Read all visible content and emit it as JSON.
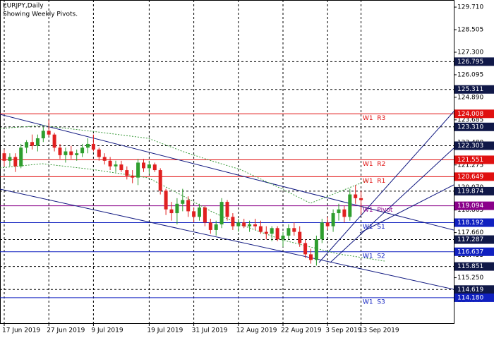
{
  "chart_data": {
    "type": "candlestick",
    "title": "EURJPY,Daily",
    "subtitle": "Showing Weekly Pivots.",
    "categories": [
      "17 Jun 2019",
      null,
      null,
      null,
      null,
      null,
      null,
      null,
      "27 Jun 2019",
      null,
      null,
      null,
      null,
      null,
      null,
      null,
      "9 Jul 2019",
      null,
      null,
      null,
      null,
      null,
      null,
      null,
      null,
      null,
      "19 Jul 2019",
      null,
      null,
      null,
      null,
      null,
      null,
      null,
      "31 Jul 2019",
      null,
      null,
      null,
      null,
      null,
      null,
      null,
      "12 Aug 2019",
      null,
      null,
      null,
      null,
      null,
      null,
      null,
      "22 Aug 2019",
      null,
      null,
      null,
      null,
      null,
      null,
      null,
      "3 Sep 2019",
      null,
      null,
      null,
      null,
      null,
      "13 Sep 2019"
    ],
    "open": [
      121.9,
      121.5,
      121.7,
      121.2,
      122.2,
      122.5,
      122.3,
      122.7,
      123.1,
      122.9,
      122.2,
      121.8,
      122.0,
      121.8,
      121.9,
      122.2,
      122.4,
      122.1,
      121.7,
      121.5,
      121.2,
      121.3,
      121.0,
      120.7,
      120.6,
      121.4,
      121.1,
      121.3,
      121.0,
      119.9,
      118.9,
      118.7,
      119.2,
      119.4,
      118.8,
      118.5,
      119.0,
      118.2,
      117.8,
      118.1,
      119.3,
      118.5,
      118.0,
      118.2,
      118.0,
      118.1,
      118.0,
      117.7,
      117.6,
      117.9,
      117.3,
      117.5,
      117.9,
      117.7,
      117.1,
      116.5,
      116.2,
      117.3,
      118.2,
      118.0,
      118.7,
      118.9,
      118.5,
      119.7,
      119.5
    ],
    "high": [
      122.1,
      121.9,
      121.9,
      122.4,
      122.6,
      122.9,
      122.9,
      123.3,
      123.7,
      123.0,
      122.4,
      122.2,
      122.3,
      122.1,
      122.4,
      122.7,
      122.9,
      122.2,
      121.9,
      121.7,
      121.5,
      121.5,
      121.2,
      121.0,
      121.6,
      121.6,
      121.5,
      121.4,
      121.1,
      120.0,
      119.3,
      119.5,
      120.0,
      119.6,
      119.0,
      119.2,
      119.1,
      118.4,
      118.3,
      119.5,
      119.4,
      118.7,
      118.4,
      118.4,
      118.3,
      118.4,
      118.3,
      118.0,
      118.0,
      118.0,
      117.7,
      118.1,
      118.2,
      118.0,
      117.3,
      116.8,
      117.5,
      118.4,
      118.5,
      118.9,
      119.2,
      119.1,
      120.0,
      120.2,
      119.9
    ],
    "low": [
      121.2,
      121.2,
      120.9,
      121.1,
      121.9,
      122.1,
      122.0,
      122.5,
      122.8,
      122.0,
      121.6,
      121.4,
      121.6,
      121.5,
      121.7,
      121.9,
      122.0,
      121.5,
      121.3,
      121.0,
      120.9,
      120.9,
      120.5,
      120.3,
      120.2,
      120.9,
      120.8,
      120.9,
      119.7,
      118.6,
      118.3,
      118.1,
      118.8,
      118.5,
      118.2,
      118.3,
      118.0,
      117.6,
      117.5,
      117.9,
      118.3,
      117.8,
      117.7,
      117.9,
      117.7,
      117.8,
      117.6,
      117.3,
      117.2,
      117.2,
      116.9,
      117.3,
      117.5,
      116.9,
      116.3,
      116.0,
      115.9,
      117.1,
      117.8,
      117.7,
      118.3,
      118.2,
      118.3,
      119.2,
      118.6
    ],
    "close": [
      121.5,
      121.7,
      121.2,
      122.2,
      122.5,
      122.3,
      122.7,
      123.1,
      122.9,
      122.2,
      121.8,
      122.0,
      121.8,
      121.9,
      122.2,
      122.4,
      122.1,
      121.7,
      121.5,
      121.2,
      121.3,
      121.0,
      120.7,
      120.6,
      121.4,
      121.1,
      121.3,
      121.0,
      119.9,
      118.9,
      118.7,
      119.2,
      119.4,
      118.8,
      118.5,
      119.0,
      118.2,
      117.8,
      118.1,
      119.3,
      118.5,
      118.0,
      118.2,
      118.0,
      118.1,
      118.0,
      117.7,
      117.6,
      117.9,
      117.3,
      117.5,
      117.9,
      117.7,
      117.1,
      116.5,
      116.2,
      117.3,
      118.2,
      118.0,
      118.7,
      118.9,
      118.5,
      119.7,
      119.5,
      119.4
    ],
    "up_color": "#2e9e2e",
    "down_color": "#e02020",
    "ylim": [
      112.82,
      130.09
    ],
    "yticks": [
      {
        "value": 129.71,
        "label": "129.710"
      },
      128.505,
      {
        "value": 127.3,
        "label": "127.300"
      },
      126.095,
      {
        "value": 124.89,
        "label": "124.890"
      },
      123.685,
      {
        "value": 122.48,
        "label": "122.480"
      },
      121.275,
      {
        "value": 120.07,
        "label": "120.070"
      },
      118.865,
      {
        "value": 117.66,
        "label": "117.660"
      },
      116.455,
      {
        "value": 115.25,
        "label": "115.250"
      },
      114.045
    ],
    "pivots": [
      {
        "name": "W1  R3",
        "value": 124.008,
        "color": "#e01010"
      },
      {
        "name": "W1  R2",
        "value": 121.551,
        "color": "#e01010"
      },
      {
        "name": "W1  R1",
        "value": 120.649,
        "color": "#e01010"
      },
      {
        "name": "W1  Pivot",
        "value": 119.094,
        "color": "#8a008a"
      },
      {
        "name": "W1  S1",
        "value": 118.192,
        "color": "#1020c0"
      },
      {
        "name": "W1  S2",
        "value": 116.637,
        "color": "#1020c0"
      },
      {
        "name": "W1  S3",
        "value": {
          "value": 114.18,
          "label": "114.180"
        },
        "color": "#1020c0"
      }
    ],
    "levels": [
      126.795,
      125.311,
      {
        "value": 123.31,
        "label": "123.310"
      },
      122.303,
      119.874,
      117.287,
      115.851,
      114.619
    ],
    "level_color": "#101848"
  }
}
